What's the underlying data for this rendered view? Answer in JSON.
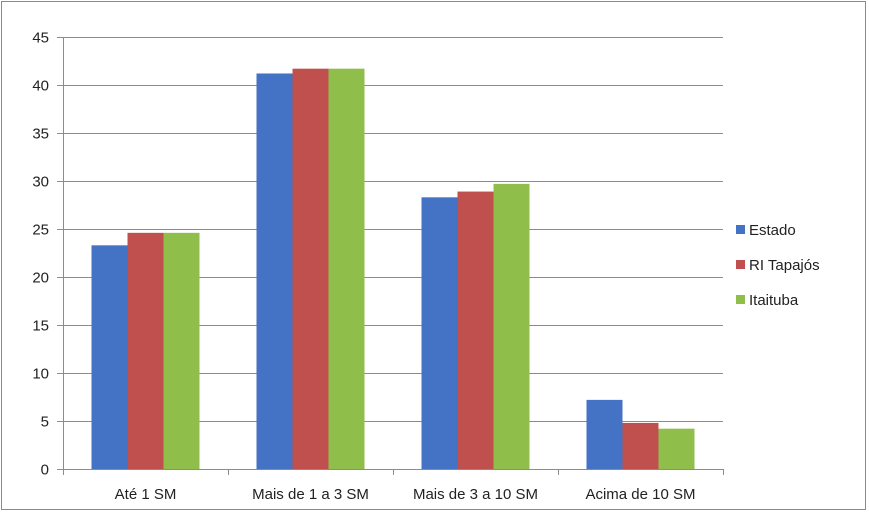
{
  "chart_data": {
    "type": "bar",
    "categories": [
      "Até 1 SM",
      "Mais de 1 a 3 SM",
      "Mais de 3 a 10 SM",
      "Acima de 10 SM"
    ],
    "series": [
      {
        "name": "Estado",
        "color": "#4472C4",
        "values": [
          23.3,
          41.2,
          28.3,
          7.2
        ]
      },
      {
        "name": "RI Tapajós",
        "color": "#C0504D",
        "values": [
          24.6,
          41.7,
          28.9,
          4.8
        ]
      },
      {
        "name": "Itaituba",
        "color": "#8FBF4A",
        "values": [
          24.6,
          41.7,
          29.7,
          4.2
        ]
      }
    ],
    "title": "",
    "xlabel": "",
    "ylabel": "",
    "ylim": [
      0,
      45
    ],
    "yticks": [
      0,
      5,
      10,
      15,
      20,
      25,
      30,
      35,
      40,
      45
    ],
    "grid": "horizontal",
    "legend": "right"
  }
}
